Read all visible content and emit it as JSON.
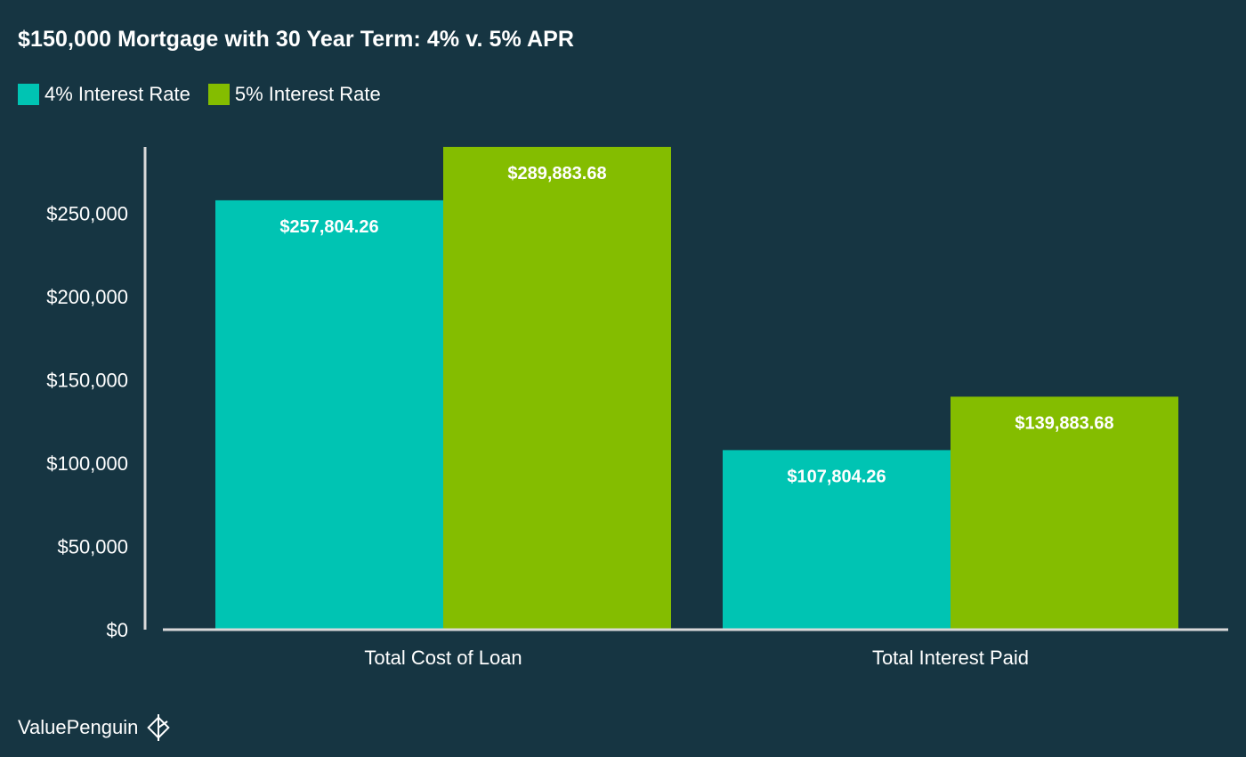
{
  "chart_data": {
    "type": "bar",
    "title": "$150,000 Mortgage with 30 Year Term: 4% v. 5% APR",
    "categories": [
      "Total Cost of Loan",
      "Total Interest Paid"
    ],
    "series": [
      {
        "name": "4% Interest Rate",
        "color": "#00c4b3",
        "values": [
          257804.26,
          107804.26
        ],
        "labels": [
          "$257,804.26",
          "$107,804.26"
        ]
      },
      {
        "name": "5% Interest Rate",
        "color": "#84bd00",
        "values": [
          289883.68,
          139883.68
        ],
        "labels": [
          "$289,883.68",
          "$139,883.68"
        ]
      }
    ],
    "yticks": [
      0,
      50000,
      100000,
      150000,
      200000,
      250000
    ],
    "ytick_labels": [
      "$0",
      "$50,000",
      "$100,000",
      "$150,000",
      "$200,000",
      "$250,000"
    ],
    "ylim": [
      0,
      290000
    ],
    "xlabel": "",
    "ylabel": "",
    "grid": false,
    "legend_position": "top-left"
  },
  "brand": {
    "name": "ValuePenguin",
    "icon": "penguin-logo-icon"
  }
}
